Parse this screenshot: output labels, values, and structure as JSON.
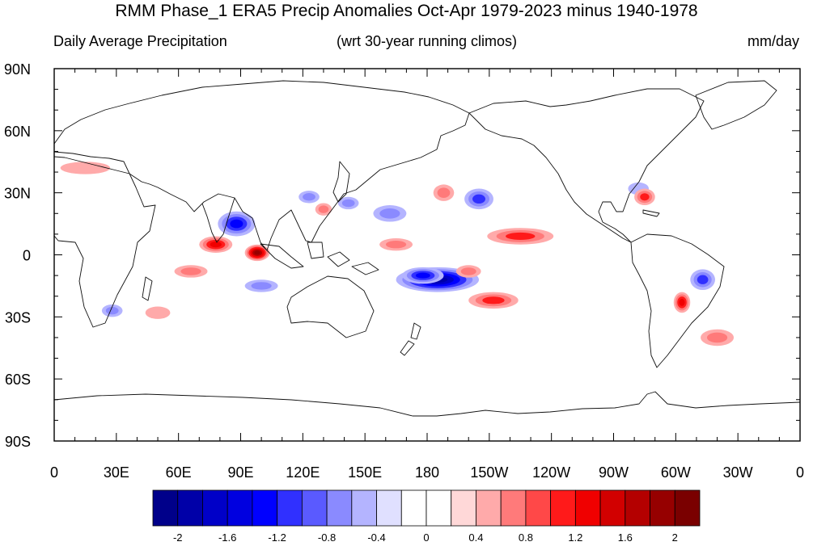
{
  "title": "RMM Phase_1 ERA5 Precip Anomalies Oct-Apr 1979-2023 minus 1940-1978",
  "subtitle_left": "Daily Average Precipitation",
  "subtitle_center": "(wrt 30-year running climos)",
  "subtitle_right": "mm/day",
  "map": {
    "lat_labels": [
      "90N",
      "60N",
      "30N",
      "0",
      "30S",
      "60S",
      "90S"
    ],
    "lon_labels": [
      "0",
      "30E",
      "60E",
      "90E",
      "120E",
      "150E",
      "180",
      "150W",
      "120W",
      "90W",
      "60W",
      "30W",
      "0"
    ],
    "anomaly_blobs": [
      {
        "lon": 88,
        "lat": 15,
        "rlon": 9,
        "rlat": 6,
        "value": -1.6
      },
      {
        "lon": 123,
        "lat": 28,
        "rlon": 5,
        "rlat": 3,
        "value": -0.9
      },
      {
        "lon": 142,
        "lat": 25,
        "rlon": 5,
        "rlat": 3,
        "value": -0.8
      },
      {
        "lon": 162,
        "lat": 20,
        "rlon": 8,
        "rlat": 4,
        "value": -0.8
      },
      {
        "lon": 205,
        "lat": 27,
        "rlon": 7,
        "rlat": 5,
        "value": -1.2
      },
      {
        "lon": 185,
        "lat": -12,
        "rlon": 20,
        "rlat": 6,
        "value": -2.0
      },
      {
        "lon": 178,
        "lat": -10,
        "rlon": 10,
        "rlat": 4,
        "value": -1.6
      },
      {
        "lon": 100,
        "lat": -15,
        "rlon": 8,
        "rlat": 3,
        "value": -1.0
      },
      {
        "lon": 28,
        "lat": -27,
        "rlon": 5,
        "rlat": 3,
        "value": -0.9
      },
      {
        "lon": 313,
        "lat": -12,
        "rlon": 6,
        "rlat": 5,
        "value": -1.2
      },
      {
        "lon": 282,
        "lat": 32,
        "rlon": 5,
        "rlat": 3,
        "value": -0.6
      },
      {
        "lon": 78,
        "lat": 5,
        "rlon": 8,
        "rlat": 4,
        "value": 1.4
      },
      {
        "lon": 98,
        "lat": 1,
        "rlon": 6,
        "rlat": 4,
        "value": 2.0
      },
      {
        "lon": 66,
        "lat": -8,
        "rlon": 8,
        "rlat": 3,
        "value": 0.9
      },
      {
        "lon": 130,
        "lat": 22,
        "rlon": 4,
        "rlat": 3,
        "value": 1.0
      },
      {
        "lon": 165,
        "lat": 5,
        "rlon": 8,
        "rlat": 3,
        "value": 1.0
      },
      {
        "lon": 225,
        "lat": 9,
        "rlon": 16,
        "rlat": 4,
        "value": 1.3
      },
      {
        "lon": 188,
        "lat": 30,
        "rlon": 5,
        "rlat": 4,
        "value": 1.0
      },
      {
        "lon": 212,
        "lat": -22,
        "rlon": 12,
        "rlat": 4,
        "value": 1.1
      },
      {
        "lon": 200,
        "lat": -8,
        "rlon": 6,
        "rlat": 3,
        "value": 0.9
      },
      {
        "lon": 303,
        "lat": -23,
        "rlon": 4,
        "rlat": 5,
        "value": 1.6
      },
      {
        "lon": 285,
        "lat": 28,
        "rlon": 5,
        "rlat": 4,
        "value": 1.2
      },
      {
        "lon": 320,
        "lat": -40,
        "rlon": 8,
        "rlat": 4,
        "value": 0.8
      },
      {
        "lon": 50,
        "lat": -28,
        "rlon": 6,
        "rlat": 3,
        "value": 0.6
      },
      {
        "lon": 15,
        "lat": 42,
        "rlon": 12,
        "rlat": 3,
        "value": 0.5
      }
    ]
  },
  "colorbar": {
    "colors": [
      "#00008a",
      "#0000a8",
      "#0000c8",
      "#0000e0",
      "#0000ff",
      "#3030ff",
      "#5a5aff",
      "#8a8aff",
      "#b4b4ff",
      "#e0e0ff",
      "#ffffff",
      "#ffffff",
      "#ffd8d8",
      "#ffaaaa",
      "#ff7a7a",
      "#ff4848",
      "#ff1a1a",
      "#f00000",
      "#d20000",
      "#b40000",
      "#960000",
      "#7a0000"
    ],
    "labels": [
      "-2",
      "-1.6",
      "-1.2",
      "-0.8",
      "-0.4",
      "0",
      "0.4",
      "0.8",
      "1.2",
      "1.6",
      "2"
    ]
  }
}
